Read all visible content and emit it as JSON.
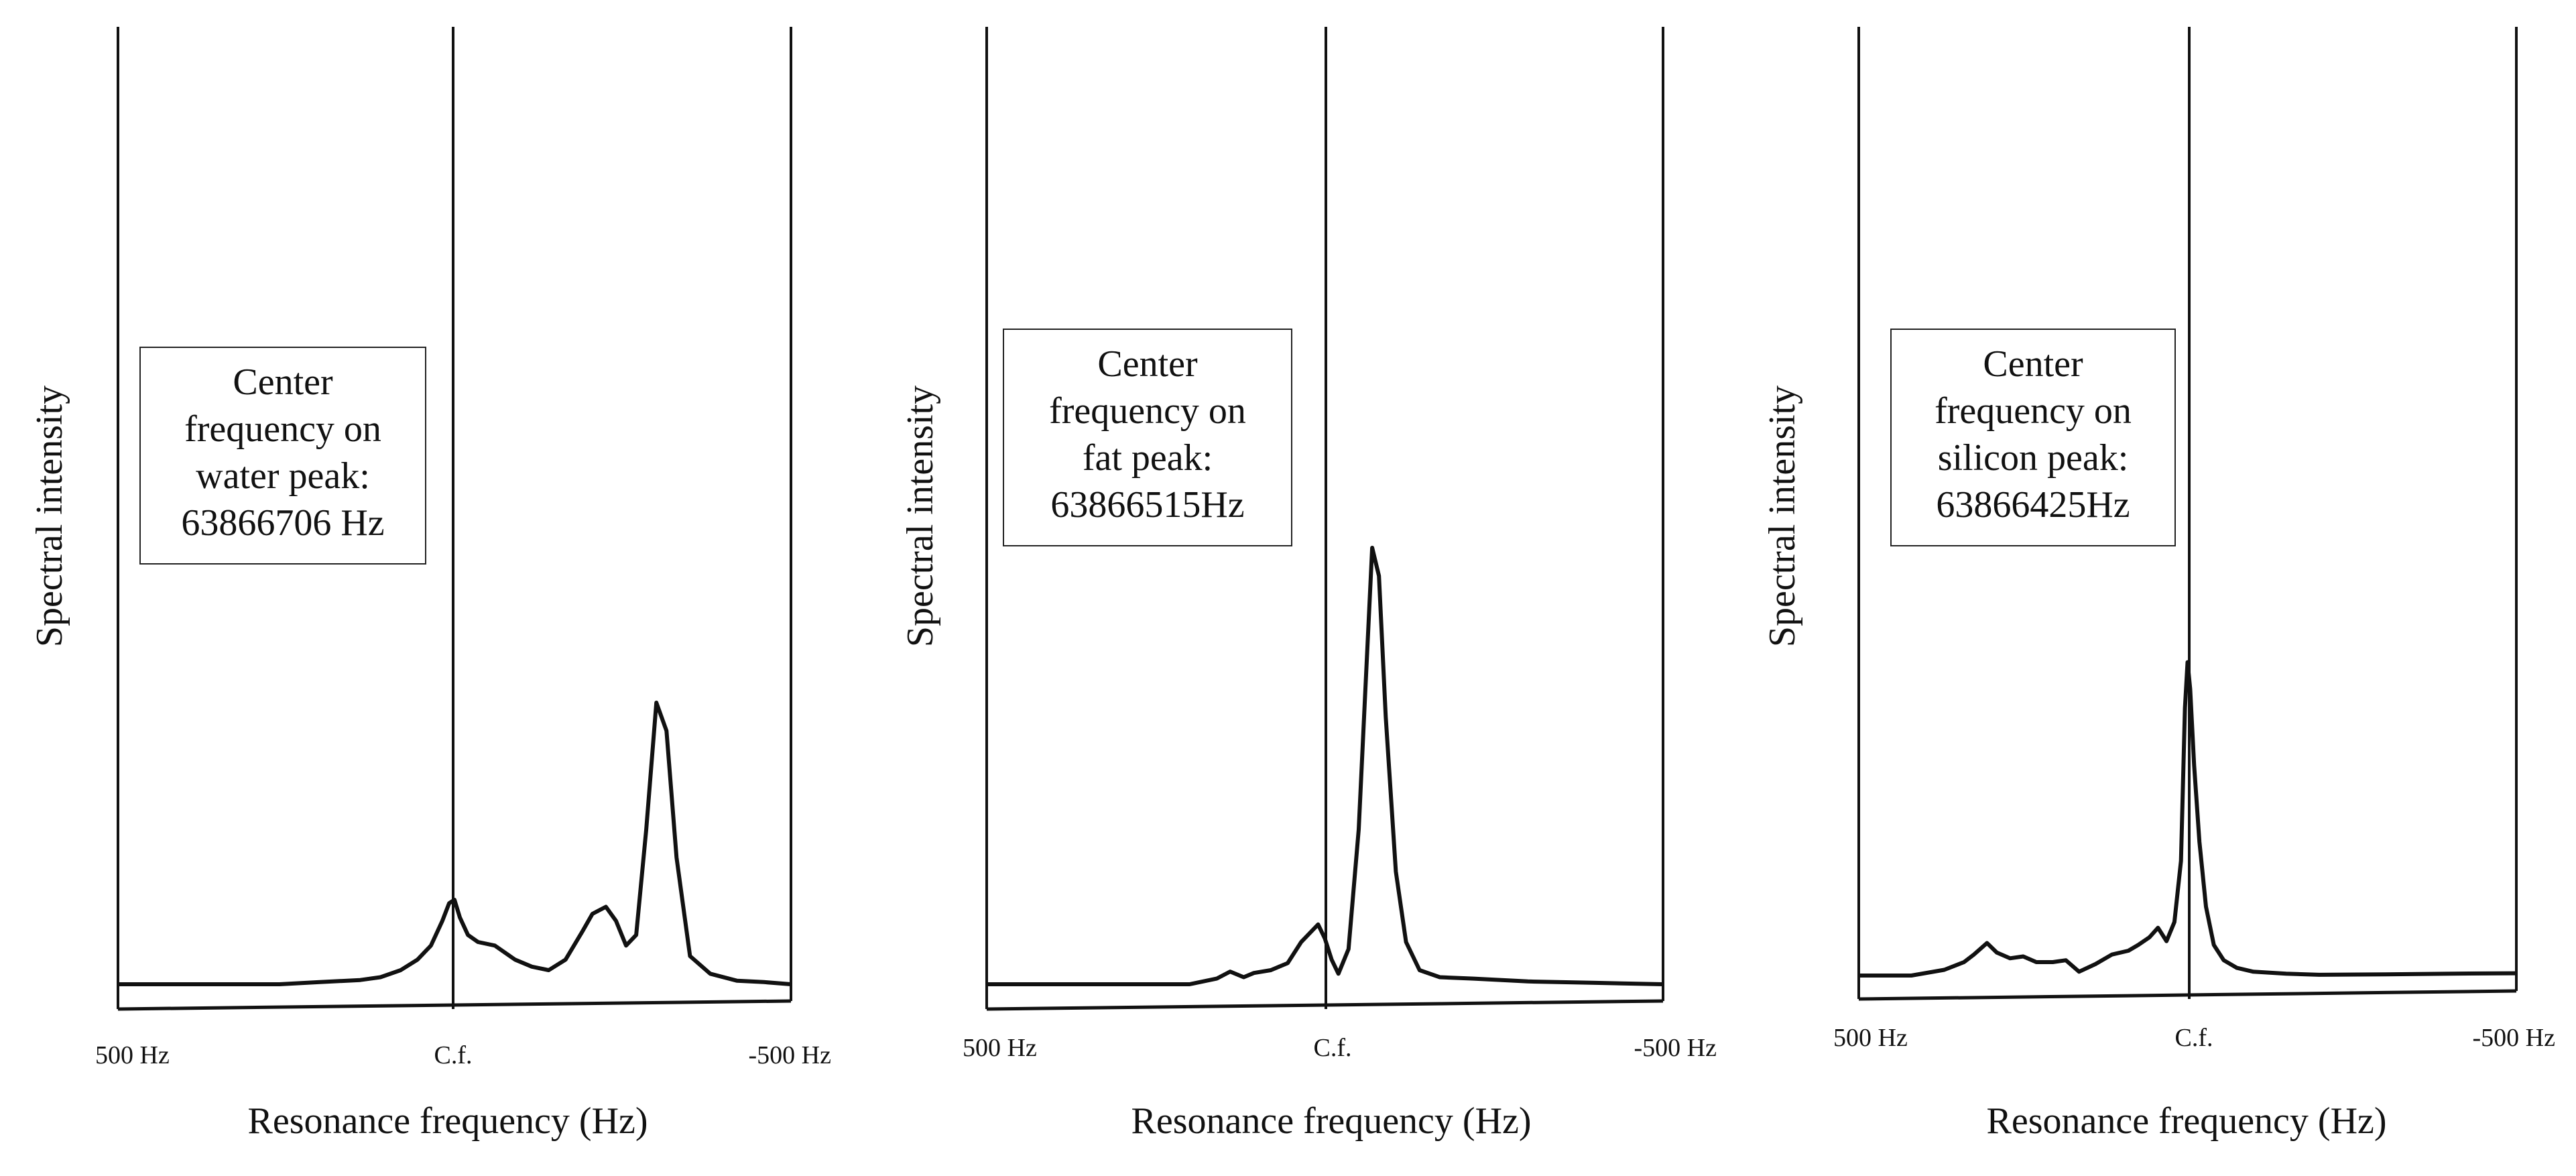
{
  "chart_data": [
    {
      "type": "line",
      "title": "",
      "ylabel": "Spectral intensity",
      "xlabel": "Resonance frequency (Hz)",
      "x_ticks": [
        "500 Hz",
        "C.f.",
        "-500 Hz"
      ],
      "xlim": [
        500,
        -500
      ],
      "ylim": [
        0,
        100
      ],
      "annotation": [
        "Center",
        "frequency on",
        "water peak:",
        "63866706 Hz"
      ],
      "center_frequency_offset_hz": 0,
      "series": [
        {
          "name": "spectrum",
          "x": [
            500,
            420,
            340,
            260,
            200,
            140,
            110,
            80,
            55,
            35,
            18,
            8,
            0,
            -8,
            -20,
            -35,
            -60,
            -90,
            -115,
            -140,
            -165,
            -190,
            -205,
            -225,
            -240,
            -255,
            -270,
            -285,
            -300,
            -315,
            -330,
            -350,
            -380,
            -420,
            -460,
            -500
          ],
          "y": [
            0,
            0,
            0,
            0,
            0.3,
            0.6,
            1.0,
            2.0,
            3.5,
            5.5,
            9.0,
            11.5,
            12.0,
            9.5,
            7.0,
            6.0,
            5.5,
            3.5,
            2.5,
            2.0,
            3.5,
            7.5,
            10.0,
            11.0,
            9.0,
            5.5,
            7.0,
            22.0,
            40.0,
            36.0,
            18.0,
            4.0,
            1.5,
            0.5,
            0.3,
            0
          ]
        }
      ]
    },
    {
      "type": "line",
      "title": "",
      "ylabel": "Spectral intensity",
      "xlabel": "Resonance frequency (Hz)",
      "x_ticks": [
        "500 Hz",
        "C.f.",
        "-500 Hz"
      ],
      "xlim": [
        500,
        -500
      ],
      "ylim": [
        0,
        100
      ],
      "annotation": [
        "Center",
        "frequency on",
        "fat peak:",
        "63866515Hz"
      ],
      "center_frequency_offset_hz": 0,
      "series": [
        {
          "name": "spectrum",
          "x": [
            500,
            420,
            340,
            260,
            200,
            160,
            140,
            120,
            105,
            80,
            55,
            35,
            20,
            10,
            0,
            -10,
            -20,
            -35,
            -50,
            -60,
            -70,
            -80,
            -90,
            -105,
            -120,
            -140,
            -170,
            -220,
            -300,
            -400,
            -500
          ],
          "y": [
            0,
            0,
            0,
            0,
            0,
            0.8,
            1.8,
            1.0,
            1.6,
            2.0,
            3.0,
            6.0,
            7.5,
            8.5,
            6.5,
            3.5,
            1.5,
            5.0,
            22.0,
            42.0,
            62.0,
            58.0,
            38.0,
            16.0,
            6.0,
            2.0,
            1.0,
            0.8,
            0.4,
            0.2,
            0
          ]
        }
      ]
    },
    {
      "type": "line",
      "title": "",
      "ylabel": "Spectral intensity",
      "xlabel": "Resonance frequency (Hz)",
      "x_ticks": [
        "500 Hz",
        "C.f.",
        "-500 Hz"
      ],
      "xlim": [
        500,
        -500
      ],
      "ylim": [
        0,
        100
      ],
      "annotation": [
        "Center",
        "frequency on",
        "silicon peak:",
        "63866425Hz"
      ],
      "center_frequency_offset_hz": 0,
      "series": [
        {
          "name": "spectrum",
          "x": [
            500,
            420,
            370,
            340,
            325,
            305,
            290,
            270,
            250,
            230,
            205,
            185,
            165,
            140,
            115,
            90,
            75,
            58,
            45,
            32,
            20,
            10,
            4,
            0,
            -4,
            -10,
            -18,
            -28,
            -40,
            -55,
            -75,
            -100,
            -150,
            -200,
            -300,
            -400,
            -500
          ],
          "y": [
            0,
            0,
            1.5,
            3.5,
            5.5,
            8.5,
            6.0,
            4.5,
            5.0,
            3.5,
            3.5,
            4.0,
            1.0,
            3.0,
            5.5,
            6.5,
            8.0,
            10.0,
            12.5,
            9.0,
            14.0,
            30.0,
            70.0,
            82.0,
            75.0,
            55.0,
            35.0,
            18.0,
            8.0,
            4.0,
            2.0,
            1.0,
            0.5,
            0.2,
            0.3,
            0.5,
            0.6
          ]
        }
      ]
    }
  ]
}
